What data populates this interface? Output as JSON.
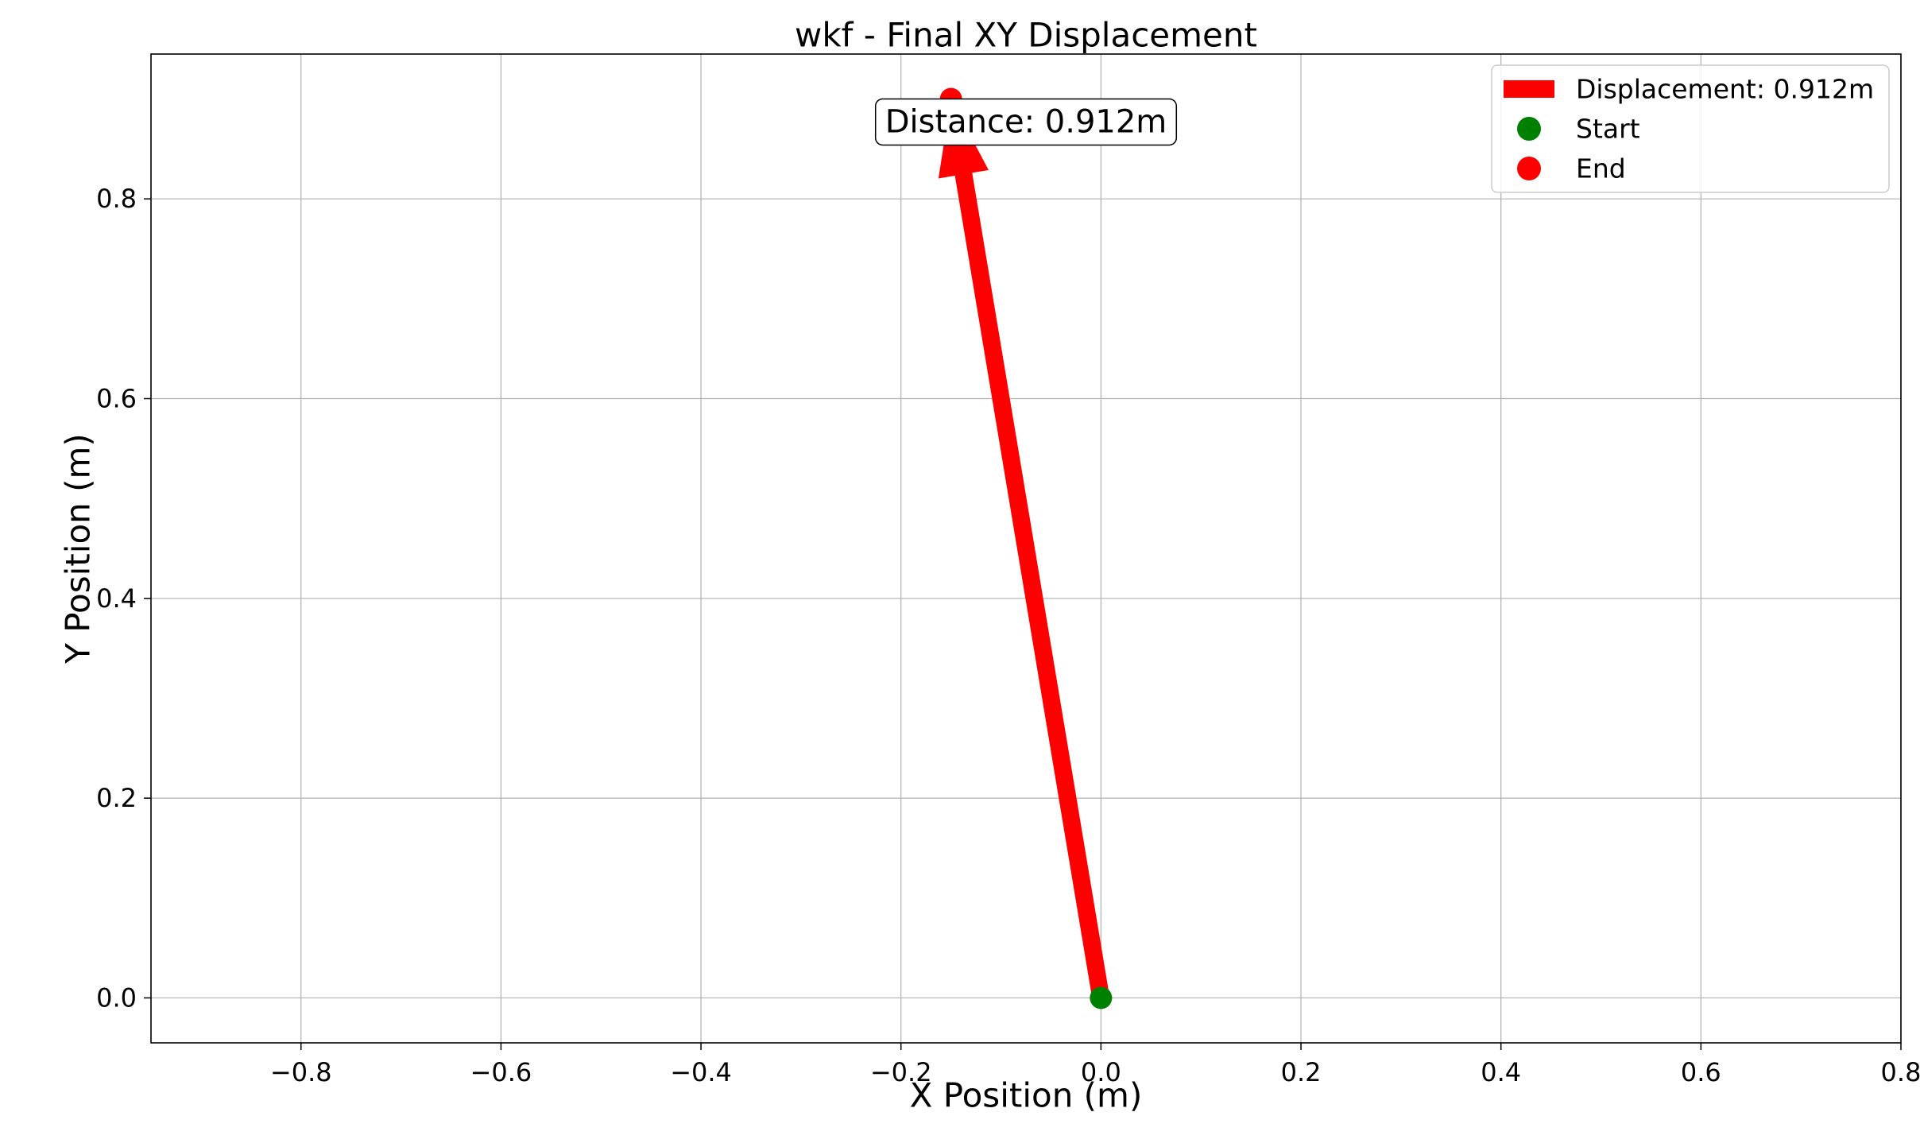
{
  "chart_data": {
    "type": "scatter",
    "title": "wkf - Final XY Displacement",
    "xlabel": "X Position (m)",
    "ylabel": "Y Position (m)",
    "xlim": [
      -0.95,
      0.8
    ],
    "ylim": [
      -0.045,
      0.945
    ],
    "grid": true,
    "x_ticks": [
      -0.8,
      -0.6,
      -0.4,
      -0.2,
      0.0,
      0.2,
      0.4,
      0.6,
      0.8
    ],
    "x_tick_labels": [
      "−0.8",
      "−0.6",
      "−0.4",
      "−0.2",
      "0.0",
      "0.2",
      "0.4",
      "0.6",
      "0.8"
    ],
    "y_ticks": [
      0.0,
      0.2,
      0.4,
      0.6,
      0.8
    ],
    "y_tick_labels": [
      "0.0",
      "0.2",
      "0.4",
      "0.6",
      "0.8"
    ],
    "displacement": {
      "label": "Displacement: 0.912m",
      "start": [
        0.0,
        0.0
      ],
      "end": [
        -0.15,
        0.9
      ],
      "color": "#ff0000"
    },
    "points": [
      {
        "name": "Start",
        "x": 0.0,
        "y": 0.0,
        "color": "#008000"
      },
      {
        "name": "End",
        "x": -0.15,
        "y": 0.9,
        "color": "#ff0000"
      }
    ],
    "annotation": {
      "text": "Distance: 0.912m",
      "x": -0.075,
      "y": 0.877
    },
    "legend": {
      "position": "top-right",
      "entries": [
        {
          "label": "Displacement: 0.912m",
          "marker": "patch",
          "color": "#ff0000"
        },
        {
          "label": "Start",
          "marker": "circle",
          "color": "#008000"
        },
        {
          "label": "End",
          "marker": "circle",
          "color": "#ff0000"
        }
      ]
    }
  }
}
